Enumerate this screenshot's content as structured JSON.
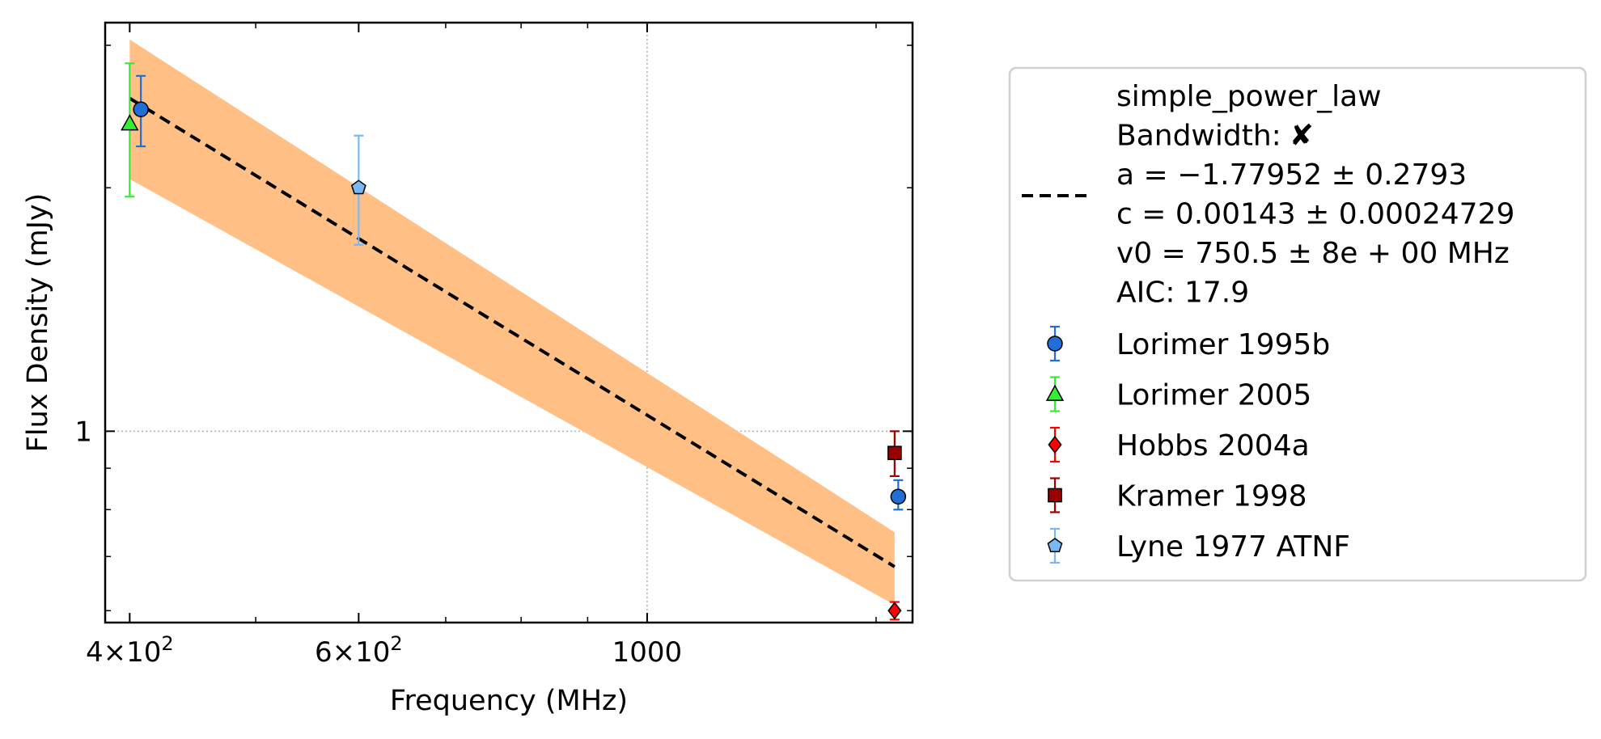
{
  "chart_data": {
    "type": "scatter",
    "xlabel": "Frequency (MHz)",
    "ylabel": "Flux Density (mJy)",
    "xscale": "log",
    "yscale": "log",
    "xlim": [
      383,
      1600
    ],
    "ylim": [
      0.58,
      3.2
    ],
    "x_ticks": [
      {
        "value": 400,
        "base": "4",
        "exp": "2"
      },
      {
        "value": 600,
        "base": "6",
        "exp": "2"
      },
      {
        "value": 1000,
        "label": "1000"
      }
    ],
    "y_ticks": [
      {
        "value": 1,
        "label": "1"
      }
    ],
    "grid": true,
    "legend_position": "outside-right",
    "fit": {
      "model": "simple_power_law",
      "bandwidth_label": "Bandwidth:",
      "bandwidth_mark": "✘",
      "a_text": "a = −1.77952 ± 0.2793",
      "c_text": "c = 0.00143 ± 0.00024729",
      "v0_text": "v0 = 750.5 ± 8e + 00 MHz",
      "aic_text": "AIC: 17.9",
      "a": -1.77952,
      "c": 0.00143,
      "v0": 750.5,
      "line_x": [
        400,
        1550
      ],
      "line_y": [
        2.58,
        0.68
      ],
      "band_upper": [
        3.05,
        0.75
      ],
      "band_lower": [
        2.05,
        0.61
      ],
      "line_color": "#000000",
      "band_color": "#ffbf85"
    },
    "series": [
      {
        "name": "Lorimer 1995b",
        "marker": "circle",
        "color": "#1f6fd6",
        "err_color": "#1f6fd6",
        "points": [
          {
            "x": 408,
            "y": 2.5,
            "lo": 2.25,
            "hi": 2.75
          },
          {
            "x": 1560,
            "y": 0.83,
            "lo": 0.8,
            "hi": 0.87
          }
        ]
      },
      {
        "name": "Lorimer 2005",
        "marker": "triangle",
        "color": "#33ee33",
        "err_color": "#33ee33",
        "points": [
          {
            "x": 400,
            "y": 2.4,
            "lo": 1.95,
            "hi": 2.85
          }
        ]
      },
      {
        "name": "Hobbs 2004a",
        "marker": "diamond",
        "color": "#ff0000",
        "err_color": "#ff0000",
        "points": [
          {
            "x": 1550,
            "y": 0.6,
            "lo": 0.585,
            "hi": 0.615
          }
        ]
      },
      {
        "name": "Kramer 1998",
        "marker": "square",
        "color": "#990000",
        "err_color": "#990000",
        "points": [
          {
            "x": 1550,
            "y": 0.94,
            "lo": 0.88,
            "hi": 1.0
          }
        ]
      },
      {
        "name": "Lyne 1977 ATNF",
        "marker": "pentagon",
        "color": "#7ab8f5",
        "err_color": "#7ab8f5",
        "points": [
          {
            "x": 600,
            "y": 2.0,
            "lo": 1.7,
            "hi": 2.32
          }
        ]
      }
    ]
  }
}
